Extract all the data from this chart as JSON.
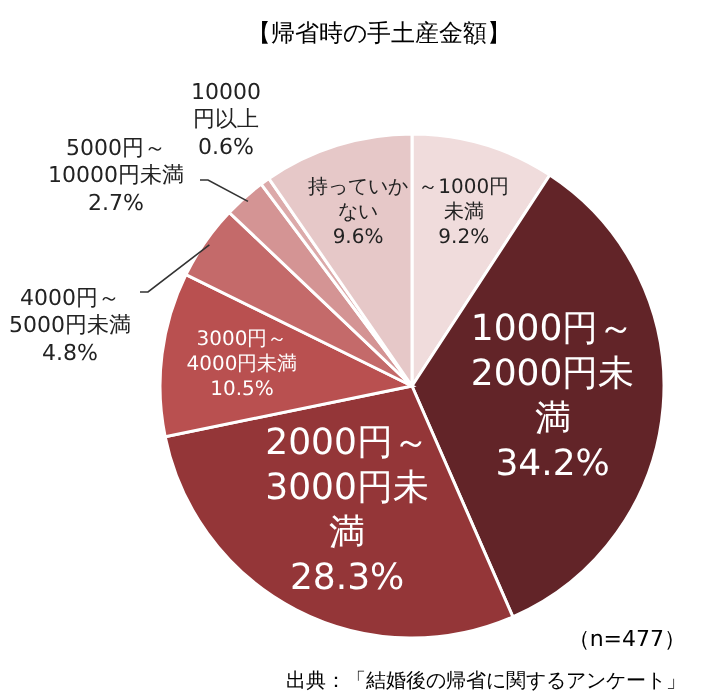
{
  "chart_data": {
    "type": "pie",
    "title": "【帰省時の手土産金額】",
    "categories": [
      "～1000円未満",
      "1000円～2000円未満",
      "2000円～3000円未満",
      "3000円～4000円未満",
      "4000円～5000円未満",
      "5000円～10000円未満",
      "10000円以上",
      "持っていかない"
    ],
    "values": [
      9.2,
      34.2,
      28.3,
      10.5,
      4.8,
      2.7,
      0.6,
      9.6
    ],
    "colors": [
      "#f0dcdc",
      "#622428",
      "#943638",
      "#b95050",
      "#c46a6a",
      "#d49494",
      "#dcaaaa",
      "#e6c8c8"
    ],
    "value_labels": [
      "9.2%",
      "34.2%",
      "28.3%",
      "10.5%",
      "4.8%",
      "2.7%",
      "0.6%",
      "9.6%"
    ],
    "annotations": [
      "（n=477）",
      "出典：「結婚後の帰省に関するアンケート」"
    ]
  }
}
